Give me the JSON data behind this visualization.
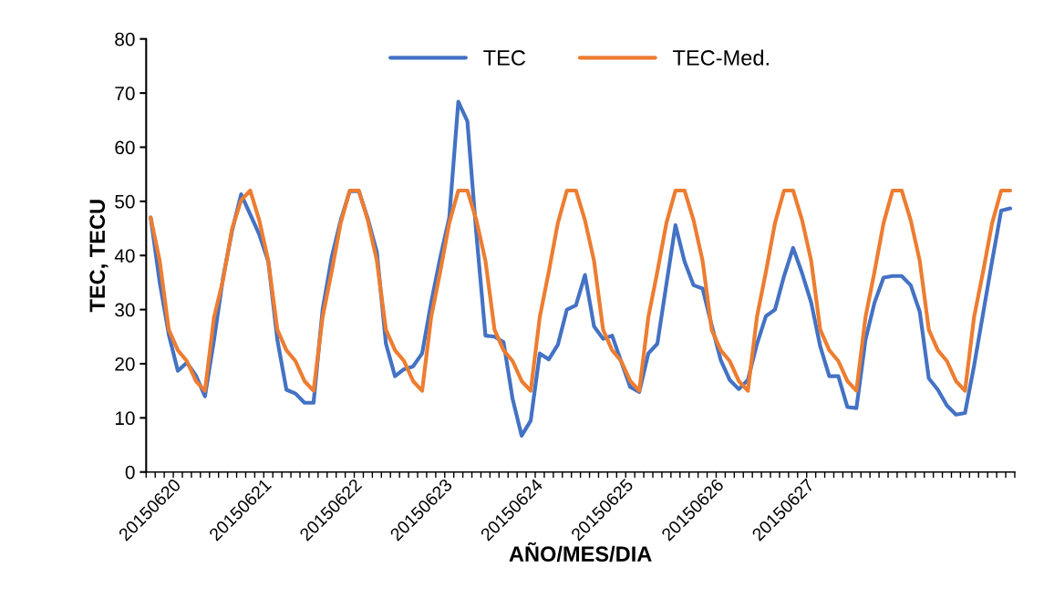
{
  "chart_data": {
    "type": "line",
    "xlabel": "AÑO/MES/DIA",
    "ylabel": "TEC, TECU",
    "categories": [
      "20150620",
      null,
      null,
      null,
      null,
      null,
      null,
      null,
      null,
      null,
      "20150621",
      null,
      null,
      null,
      null,
      null,
      null,
      null,
      null,
      null,
      "20150622",
      null,
      null,
      null,
      null,
      null,
      null,
      null,
      null,
      null,
      "20150623",
      null,
      null,
      null,
      null,
      null,
      null,
      null,
      null,
      null,
      "20150624",
      null,
      null,
      null,
      null,
      null,
      null,
      null,
      null,
      null,
      "20150625",
      null,
      null,
      null,
      null,
      null,
      null,
      null,
      null,
      null,
      "20150626",
      null,
      null,
      null,
      null,
      null,
      null,
      null,
      null,
      null,
      "20150627",
      null,
      null,
      null,
      null,
      null,
      null,
      null,
      null,
      null,
      null,
      null,
      null,
      null,
      null,
      null,
      null,
      null,
      null,
      null,
      null,
      null,
      null,
      null,
      null,
      null
    ],
    "series": [
      {
        "name": "TEC",
        "color": "#4472c4",
        "values": [
          47,
          35,
          25.4,
          18.7,
          20.2,
          17.8,
          14,
          24.4,
          35.9,
          44.6,
          51.3,
          47.6,
          43.9,
          38.9,
          24.4,
          15.2,
          14.5,
          12.8,
          12.8,
          30,
          39.6,
          46.5,
          51.9,
          51.9,
          46.8,
          40.6,
          23.7,
          17.7,
          19,
          19.5,
          21.9,
          31.3,
          39.6,
          47,
          68.4,
          64.8,
          43.9,
          25.2,
          25,
          24,
          13.5,
          6.7,
          9.5,
          21.9,
          20.8,
          23.5,
          30,
          30.8,
          36.4,
          26.9,
          24.6,
          25.2,
          20.4,
          15.7,
          14.8,
          21.9,
          23.7,
          34.7,
          45.6,
          38.9,
          34.5,
          33.9,
          27.1,
          20.7,
          17,
          15.3,
          17,
          23.6,
          28.8,
          30,
          36.2,
          41.4,
          36.7,
          31.3,
          23.2,
          17.7,
          17.7,
          12,
          11.8,
          24.4,
          31.3,
          35.9,
          36.2,
          36.2,
          34.5,
          29.6,
          17.3,
          15.2,
          12.3,
          10.6,
          10.9,
          19.6,
          29.3,
          39,
          48.3,
          48.7
        ]
      },
      {
        "name": "TEC-Med.",
        "color": "#ed7d31",
        "values": [
          47,
          39,
          26.3,
          22.5,
          20.5,
          16.8,
          15,
          28.6,
          35.5,
          45,
          50.2,
          52,
          46.5,
          39,
          26.3,
          22.5,
          20.5,
          16.8,
          15,
          28.6,
          37,
          46,
          52,
          52,
          46.5,
          39,
          26.3,
          22.5,
          20.5,
          16.8,
          15,
          28.6,
          37,
          46,
          52,
          52,
          46.5,
          39,
          26.3,
          22.5,
          20.5,
          16.8,
          15,
          28.6,
          37,
          46,
          52,
          52,
          46.5,
          39,
          26.3,
          22.5,
          20.5,
          16.8,
          15,
          28.6,
          37,
          46,
          52,
          52,
          46.5,
          39,
          26.3,
          22.5,
          20.5,
          16.8,
          15,
          28.6,
          37,
          46,
          52,
          52,
          46.5,
          39,
          26.3,
          22.5,
          20.5,
          16.8,
          15,
          28.6,
          37,
          46,
          52,
          52,
          46.5,
          39,
          26.3,
          22.5,
          20.5,
          16.8,
          15,
          28.6,
          37,
          46,
          52,
          52
        ]
      }
    ],
    "ylim": [
      0,
      80
    ],
    "yticks": [
      0,
      10,
      20,
      30,
      40,
      50,
      60,
      70,
      80
    ],
    "grid": false,
    "legend": "top",
    "marker": "none",
    "line_style": "solid"
  }
}
